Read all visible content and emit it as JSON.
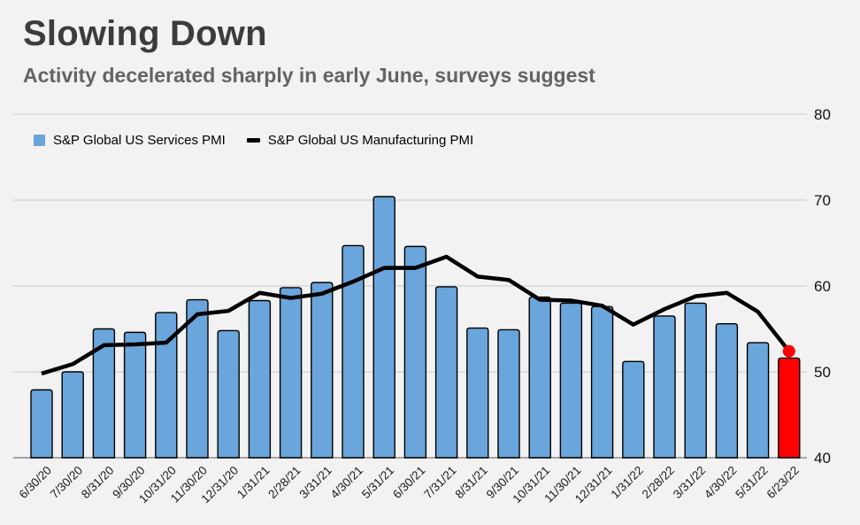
{
  "header": {
    "title": "Slowing Down",
    "subtitle": "Activity decelerated sharply in early June, surveys suggest"
  },
  "chart_data": {
    "type": "bar",
    "title": "Slowing Down",
    "subtitle": "Activity decelerated sharply in early June, surveys suggest",
    "categories": [
      "6/30/20",
      "7/30/20",
      "8/31/20",
      "9/30/20",
      "10/31/20",
      "11/30/20",
      "12/31/20",
      "1/31/21",
      "2/28/21",
      "3/31/21",
      "4/30/21",
      "5/31/21",
      "6/30/21",
      "7/31/21",
      "8/31/21",
      "9/30/21",
      "10/31/21",
      "11/30/21",
      "12/31/21",
      "1/31/22",
      "2/28/22",
      "3/31/22",
      "4/30/22",
      "5/31/22",
      "6/23/22"
    ],
    "series": [
      {
        "name": "S&P Global US Services PMI",
        "type": "bar",
        "color": "#6aa5dc",
        "highlight_last": true,
        "highlight_color": "#fe0000",
        "values": [
          47.9,
          50.0,
          55.0,
          54.6,
          56.9,
          58.4,
          54.8,
          58.3,
          59.8,
          60.4,
          64.7,
          70.4,
          64.6,
          59.9,
          55.1,
          54.9,
          58.7,
          58.0,
          57.6,
          51.2,
          56.5,
          58.0,
          55.6,
          53.4,
          51.6
        ]
      },
      {
        "name": "S&P Global US Manufacturing PMI",
        "type": "line",
        "color": "#000000",
        "end_dot_color": "#fe0000",
        "values": [
          49.8,
          50.9,
          53.1,
          53.2,
          53.4,
          56.7,
          57.1,
          59.2,
          58.6,
          59.1,
          60.5,
          62.1,
          62.1,
          63.4,
          61.1,
          60.7,
          58.4,
          58.3,
          57.7,
          55.5,
          57.3,
          58.8,
          59.2,
          57.0,
          52.4
        ]
      }
    ],
    "ylim": [
      40,
      80
    ],
    "yticks": [
      40,
      50,
      60,
      70,
      80
    ],
    "grid": true,
    "legend_position": "top-left",
    "y_axis_side": "right",
    "xlabel": "",
    "ylabel": ""
  }
}
